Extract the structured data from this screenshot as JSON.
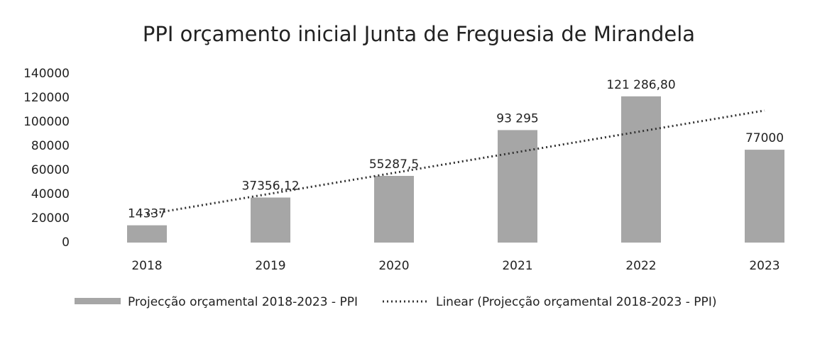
{
  "chart_data": {
    "type": "bar",
    "title": "PPI orçamento inicial Junta de Freguesia de Mirandela",
    "categories": [
      "2018",
      "2019",
      "2020",
      "2021",
      "2022",
      "2023"
    ],
    "series": [
      {
        "name": "Projecção orçamental 2018-2023 - PPI",
        "type": "bar",
        "color": "#a6a6a6",
        "values": [
          14337,
          37356.12,
          55287.5,
          93295,
          121286.8,
          77000
        ],
        "value_labels": [
          "14337",
          "37356,12",
          "55287,5",
          "93 295",
          "121 286,80",
          "77000"
        ]
      },
      {
        "name": "Linear (Projecção orçamental 2018-2023 - PPI)",
        "type": "line",
        "style": "dotted",
        "color": "#333333",
        "values": [
          23347,
          40579,
          57811,
          75043,
          92275,
          109507
        ]
      }
    ],
    "ylim": [
      0,
      140000
    ],
    "yticks": [
      0,
      20000,
      40000,
      60000,
      80000,
      100000,
      120000,
      140000
    ],
    "grid": false,
    "legend": "bottom"
  }
}
